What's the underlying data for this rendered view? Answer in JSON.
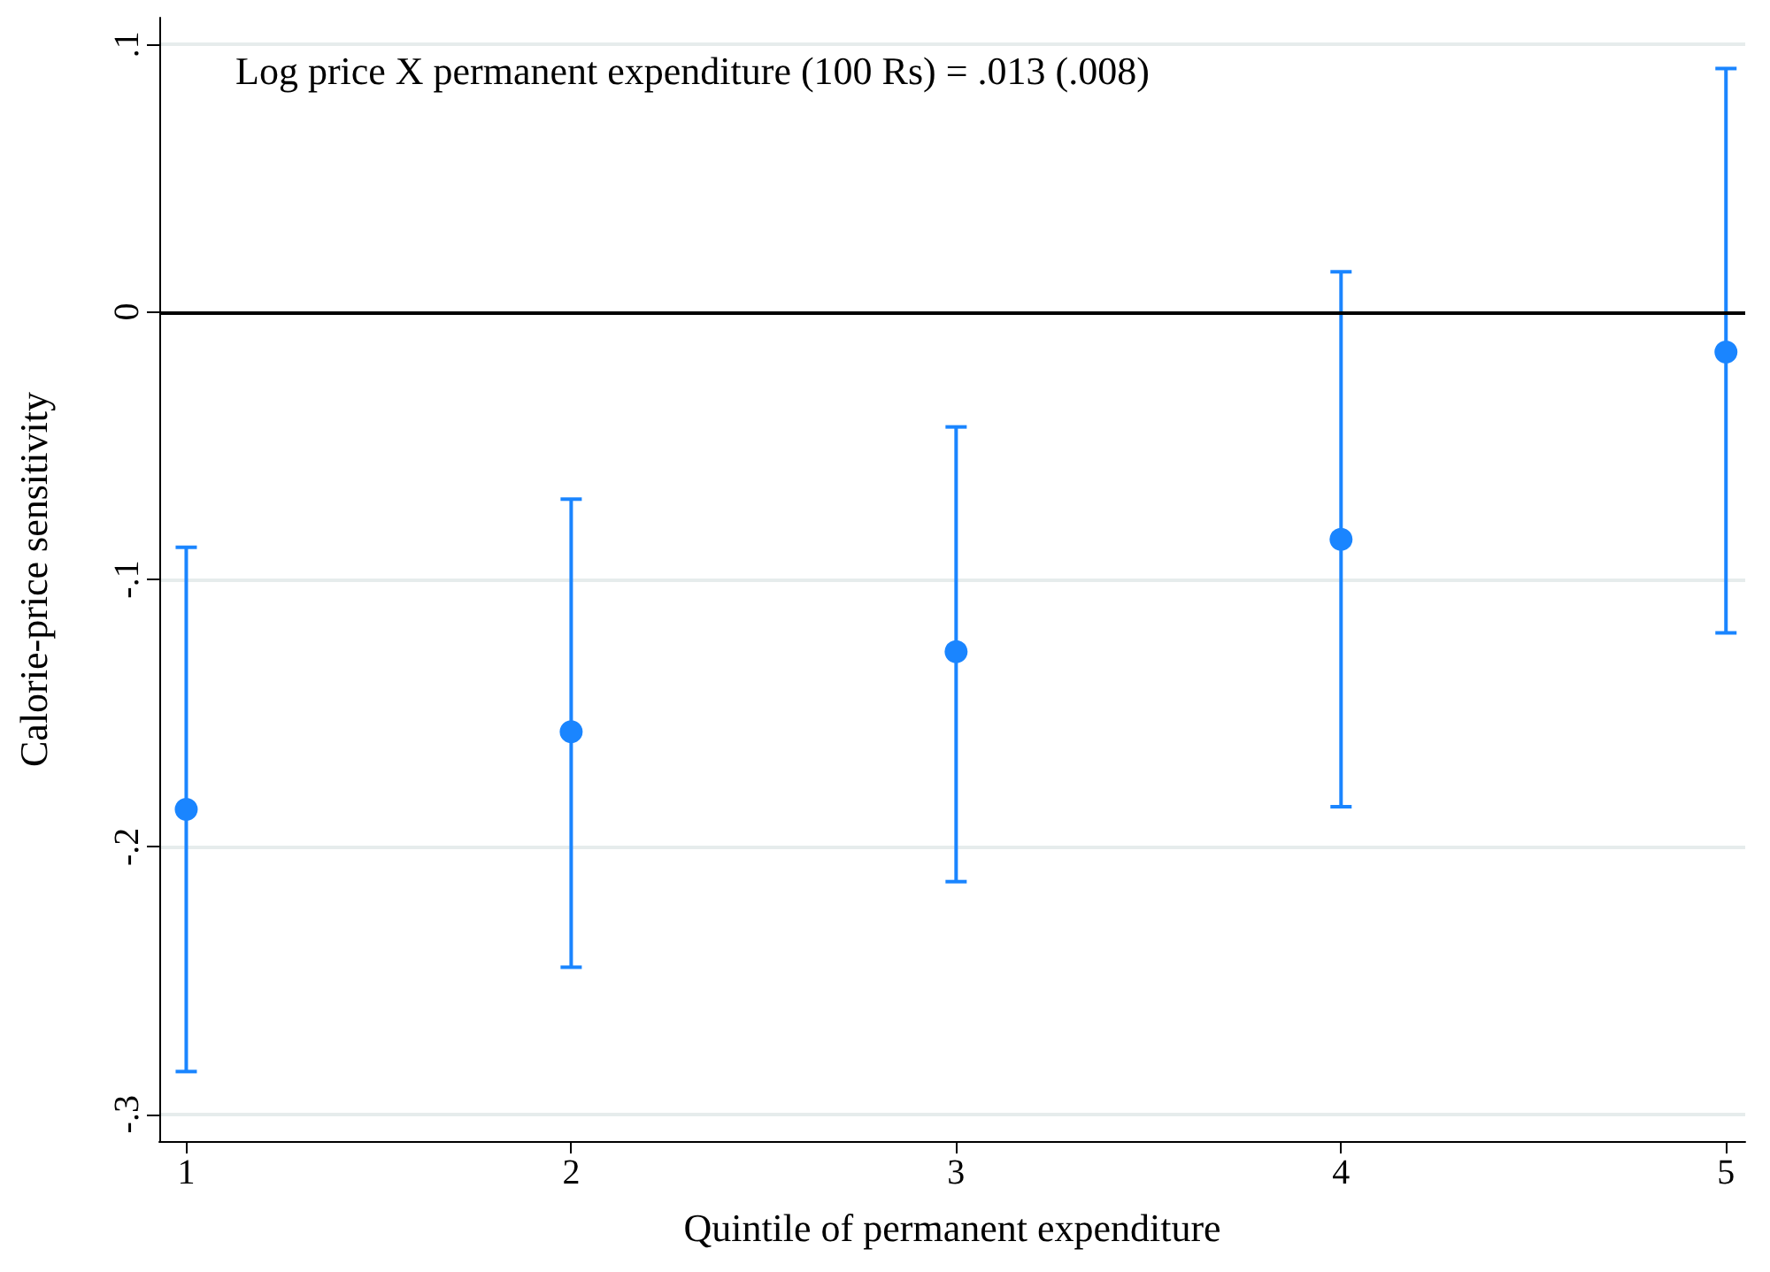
{
  "chart_data": {
    "type": "scatter",
    "xlabel": "Quintile of permanent expenditure",
    "ylabel": "Calorie-price sensitivity",
    "annotations": [
      "Log price X permanent expenditure (100 Rs) = .013 (.008)"
    ],
    "x": [
      1,
      2,
      3,
      4,
      5
    ],
    "values": [
      -0.186,
      -0.157,
      -0.127,
      -0.085,
      -0.015
    ],
    "errors": [
      [
        -0.284,
        -0.088
      ],
      [
        -0.245,
        -0.07
      ],
      [
        -0.213,
        -0.043
      ],
      [
        -0.185,
        0.015
      ],
      [
        -0.12,
        0.091
      ]
    ],
    "color": "#1a85ff",
    "marker": "circle",
    "xlim": [
      0.93,
      5.05
    ],
    "xticks": [
      1,
      2,
      3,
      4,
      5
    ],
    "ylim": [
      -0.31,
      0.11
    ],
    "yticks": [
      {
        "value": -0.3,
        "label": "-.3"
      },
      {
        "value": -0.2,
        "label": "-.2"
      },
      {
        "value": -0.1,
        "label": "-.1"
      },
      0,
      {
        "value": 0.1,
        "label": ".1"
      }
    ],
    "grid": "y",
    "ref_lines": [
      {
        "axis": "y",
        "value": 0,
        "color": "#000000"
      }
    ]
  }
}
